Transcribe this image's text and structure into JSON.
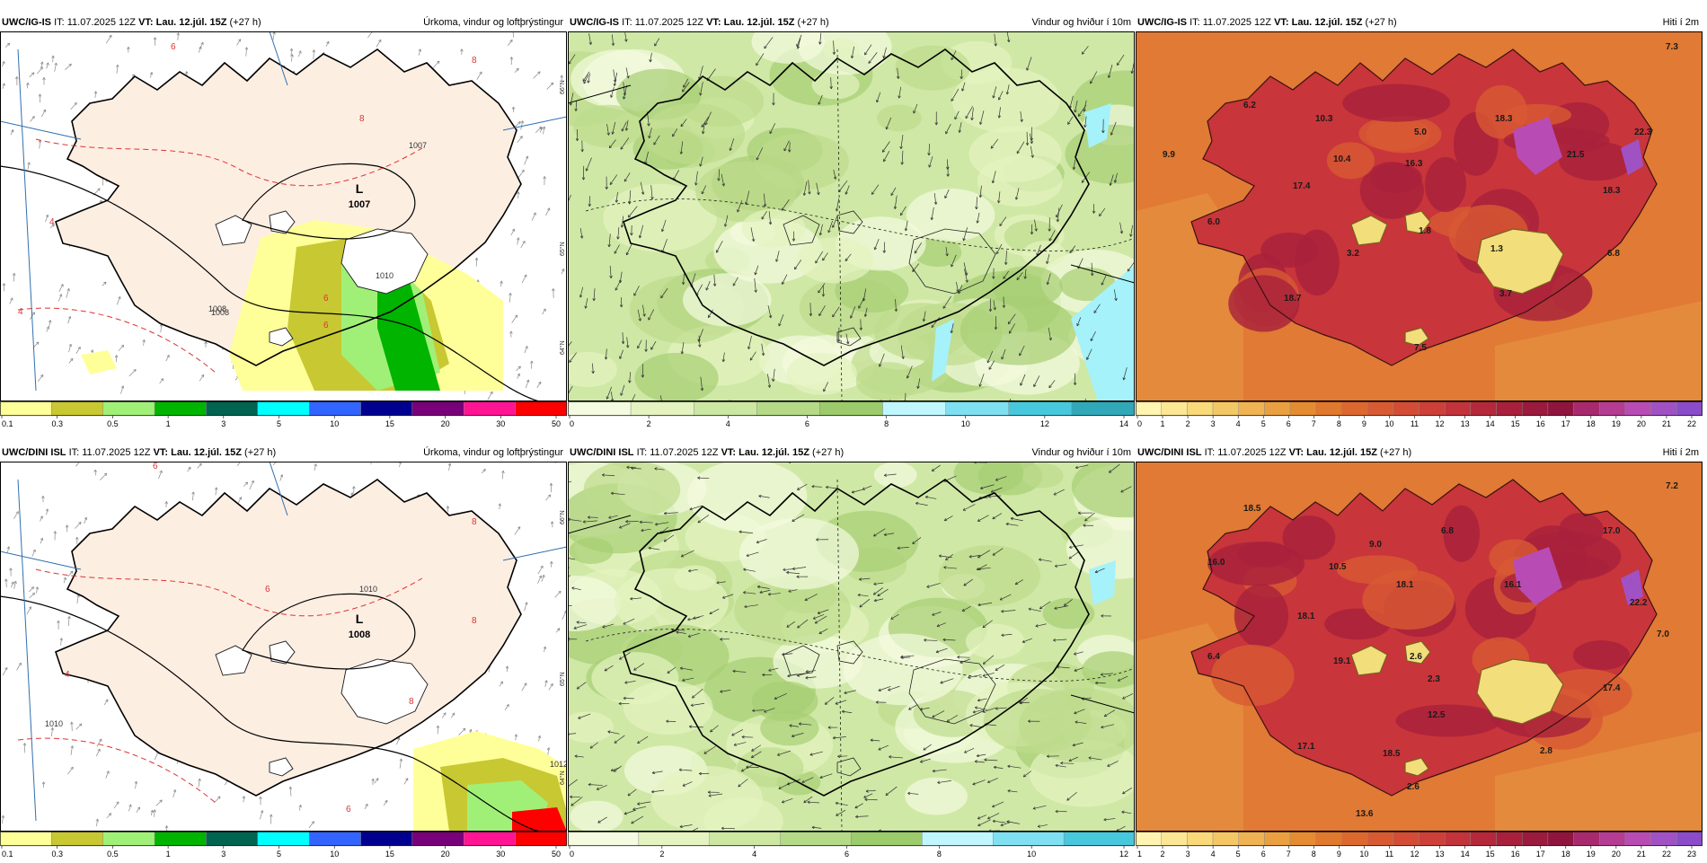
{
  "panels": [
    {
      "id": "p1",
      "model": "UWC/IG-IS",
      "it_label": "IT:",
      "it_value": "11.07.2025 12Z",
      "vt_label": "VT:",
      "vt_value": "Lau. 12.júl. 15Z",
      "lead": "(+27 h)",
      "field_title": "Úrkoma, vindur og loftþrýstingur",
      "colorbar": {
        "colors": [
          "#ffff99",
          "#c8c832",
          "#a0f078",
          "#00b400",
          "#006450",
          "#00ffff",
          "#3264ff",
          "#000090",
          "#780078",
          "#ff1493",
          "#ff0000"
        ],
        "labels": [
          "0.1",
          "0.3",
          "0.5",
          "1",
          "3",
          "5",
          "10",
          "15",
          "20",
          "30",
          "50"
        ]
      },
      "pressure_labels": [
        "1007",
        "1008",
        "1008",
        "1010"
      ],
      "low_label": "L",
      "low_value": "1007",
      "side_labels": [
        "66°N",
        "65°N",
        "64°N"
      ],
      "isotherm_labels": [
        "6",
        "8",
        "8",
        "4",
        "4",
        "6",
        "6"
      ]
    },
    {
      "id": "p2",
      "model": "UWC/IG-IS",
      "it_label": "IT:",
      "it_value": "11.07.2025 12Z",
      "vt_label": "VT:",
      "vt_value": "Lau. 12.júl. 15Z",
      "lead": "(+27 h)",
      "field_title": "Vindur og hviður í 10m",
      "colorbar": {
        "colors": [
          "#f4fbe0",
          "#e4f3c0",
          "#cbe7a2",
          "#b4da87",
          "#9ccb6b",
          "#c0f7ff",
          "#7fe0f2",
          "#48c8dc",
          "#30a8b8"
        ],
        "labels": [
          "0",
          "2",
          "4",
          "6",
          "8",
          "10",
          "12",
          "14"
        ]
      },
      "side_labels": []
    },
    {
      "id": "p3",
      "model": "UWC/IG-IS",
      "it_label": "IT:",
      "it_value": "11.07.2025 12Z",
      "vt_label": "VT:",
      "vt_value": "Lau. 12.júl. 15Z",
      "lead": "(+27 h)",
      "field_title": "Hiti í 2m",
      "colorbar": {
        "colors": [
          "#fff5b0",
          "#fce795",
          "#f9d97a",
          "#f4c766",
          "#efb353",
          "#eaa040",
          "#e58c33",
          "#e0782e",
          "#dc6830",
          "#d85a33",
          "#d34d36",
          "#cc4039",
          "#c2333b",
          "#b5283b",
          "#a8203c",
          "#9b1a3d",
          "#8f153f",
          "#a82a6e",
          "#b43c92",
          "#b84cb4",
          "#a052c4",
          "#8a4cc8"
        ],
        "labels": [
          "0",
          "1",
          "2",
          "3",
          "4",
          "5",
          "6",
          "7",
          "8",
          "9",
          "10",
          "11",
          "12",
          "13",
          "14",
          "15",
          "16",
          "17",
          "18",
          "19",
          "20",
          "21",
          "22"
        ]
      },
      "temp_labels": [
        "7.3",
        "6.2",
        "10.3",
        "5.0",
        "18.3",
        "21.5",
        "22.3",
        "9.9",
        "10.4",
        "16.3",
        "17.4",
        "18.3",
        "6.0",
        "3.2",
        "1.8",
        "1.3",
        "6.8",
        "18.7",
        "3.7",
        "7.5"
      ],
      "side_labels": []
    },
    {
      "id": "p4",
      "model": "UWC/DINI ISL",
      "it_label": "IT:",
      "it_value": "11.07.2025 12Z",
      "vt_label": "VT:",
      "vt_value": "Lau. 12.júl. 15Z",
      "lead": "(+27 h)",
      "field_title": "Úrkoma, vindur og loftþrýstingur",
      "colorbar": {
        "colors": [
          "#ffff99",
          "#c8c832",
          "#a0f078",
          "#00b400",
          "#006450",
          "#00ffff",
          "#3264ff",
          "#000090",
          "#780078",
          "#ff1493",
          "#ff0000"
        ],
        "labels": [
          "0.1",
          "0.3",
          "0.5",
          "1",
          "3",
          "5",
          "10",
          "15",
          "20",
          "30",
          "50"
        ]
      },
      "pressure_labels": [
        "1010",
        "1010",
        "1012"
      ],
      "low_label": "L",
      "low_value": "1008",
      "side_labels": [
        "66°N",
        "65°N",
        "64°N"
      ],
      "isotherm_labels": [
        "6",
        "8",
        "8",
        "6",
        "8",
        "4",
        "6"
      ]
    },
    {
      "id": "p5",
      "model": "UWC/DINI ISL",
      "it_label": "IT:",
      "it_value": "11.07.2025 12Z",
      "vt_label": "VT:",
      "vt_value": "Lau. 12.júl. 15Z",
      "lead": "(+27 h)",
      "field_title": "Vindur og hviður í 10m",
      "colorbar": {
        "colors": [
          "#f4fbe0",
          "#e4f3c0",
          "#cbe7a2",
          "#b4da87",
          "#9ccb6b",
          "#c0f7ff",
          "#7fe0f2",
          "#48c8dc"
        ],
        "labels": [
          "0",
          "2",
          "4",
          "6",
          "8",
          "10",
          "12"
        ]
      },
      "side_labels": []
    },
    {
      "id": "p6",
      "model": "UWC/DINI ISL",
      "it_label": "IT:",
      "it_value": "11.07.2025 12Z",
      "vt_label": "VT:",
      "vt_value": "Lau. 12.júl. 15Z",
      "lead": "(+27 h)",
      "field_title": "Hiti í 2m",
      "colorbar": {
        "colors": [
          "#fff5b0",
          "#fce795",
          "#f9d97a",
          "#f4c766",
          "#efb353",
          "#eaa040",
          "#e58c33",
          "#e0782e",
          "#dc6830",
          "#d85a33",
          "#d34d36",
          "#cc4039",
          "#c2333b",
          "#b5283b",
          "#a8203c",
          "#9b1a3d",
          "#8f153f",
          "#a82a6e",
          "#b43c92",
          "#b84cb4",
          "#a052c4",
          "#8a4cc8"
        ],
        "labels": [
          "1",
          "2",
          "3",
          "4",
          "5",
          "6",
          "7",
          "8",
          "9",
          "10",
          "11",
          "12",
          "13",
          "14",
          "15",
          "16",
          "17",
          "18",
          "19",
          "20",
          "21",
          "22",
          "23"
        ]
      },
      "temp_labels": [
        "7.2",
        "18.5",
        "16.0",
        "9.0",
        "6.8",
        "17.0",
        "10.5",
        "18.1",
        "16.1",
        "22.2",
        "18.1",
        "7.0",
        "6.4",
        "19.1",
        "2.6",
        "2.3",
        "17.4",
        "12.5",
        "17.1",
        "18.5",
        "2.8",
        "2.6",
        "13.6"
      ],
      "side_labels": []
    }
  ]
}
